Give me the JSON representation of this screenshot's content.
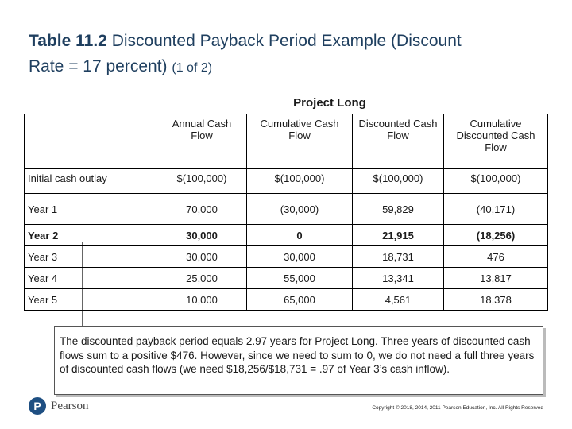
{
  "slide": {
    "title_bold": "Table 11.2",
    "title_rest": "Discounted Payback Period Example (Discount",
    "title_line2": "Rate = 17 percent)",
    "title_part": "(1 of 2)",
    "project_label": "Project Long"
  },
  "table": {
    "headers": [
      "Annual Cash Flow",
      "Cumulative Cash Flow",
      "Discounted Cash Flow",
      "Cumulative Discounted Cash Flow"
    ],
    "rows": [
      {
        "label": "Initial cash outlay",
        "values": [
          "$(100,000)",
          "$(100,000)",
          "$(100,000)",
          "$(100,000)"
        ]
      },
      {
        "label": "Year 1",
        "values": [
          "70,000",
          "(30,000)",
          "59,829",
          "(40,171)"
        ]
      },
      {
        "label": "Year 2",
        "values": [
          "30,000",
          "0",
          "21,915",
          "(18,256)"
        ]
      },
      {
        "label": "Year 3",
        "values": [
          "30,000",
          "30,000",
          "18,731",
          "476"
        ]
      },
      {
        "label": "Year 4",
        "values": [
          "25,000",
          "55,000",
          "13,341",
          "13,817"
        ]
      },
      {
        "label": "Year 5",
        "values": [
          "10,000",
          "65,000",
          "4,561",
          "18,378"
        ]
      }
    ]
  },
  "callout": {
    "text": "The discounted payback period equals 2.97 years for Project Long. Three years of discounted cash flows sum to a positive $476. However, since we need to sum to 0, we do not need a full three years of discounted cash flows (we need $18,256/$18,731 = .97 of Year 3’s cash inflow)."
  },
  "footer": {
    "logo_text": "Pearson",
    "logo_mark": "P",
    "copyright": "Copyright © 2018, 2014, 2011 Pearson Education, Inc. All Rights Reserved"
  }
}
